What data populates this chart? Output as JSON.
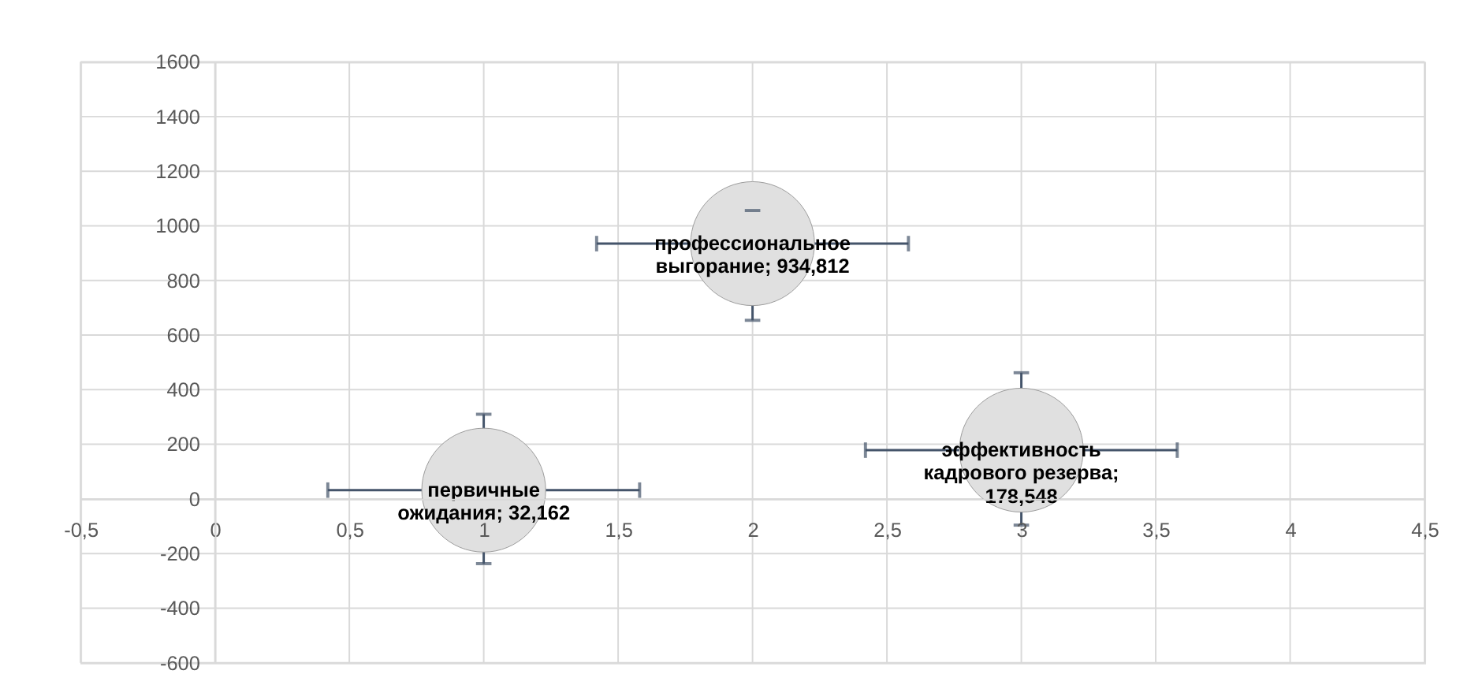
{
  "chart_data": {
    "type": "bubble",
    "x": [
      1,
      2,
      3
    ],
    "values": [
      32.162,
      934.812,
      178.548
    ],
    "sizes": [
      1,
      1,
      1
    ],
    "color": "#e0e0e0",
    "errors": [
      [
        -237,
        310
      ],
      [
        654,
        1056
      ],
      [
        -96,
        462
      ]
    ],
    "xerrors": [
      0.58,
      0.58,
      0.58
    ],
    "annotations": [
      {
        "text": "первичные\nожидания; 32,162",
        "x": 1,
        "y": 32.162
      },
      {
        "text": "профессиональное\nвыгорание; 934,812",
        "x": 2,
        "y": 934.812
      },
      {
        "text": "эффективность\nкадрового резерва;\n178,548",
        "x": 3,
        "y": 178.548
      }
    ],
    "xlim": [
      -0.5,
      4.5
    ],
    "xticks": [
      {
        "value": -0.5,
        "label": "-0,5"
      },
      0,
      {
        "value": 0.5,
        "label": "0,5"
      },
      1,
      {
        "value": 1.5,
        "label": "1,5"
      },
      2,
      {
        "value": 2.5,
        "label": "2,5"
      },
      3,
      {
        "value": 3.5,
        "label": "3,5"
      },
      4,
      {
        "value": 4.5,
        "label": "4,5"
      }
    ],
    "ylim": [
      -600,
      1600
    ],
    "yticks": [
      -600,
      -400,
      -200,
      0,
      200,
      400,
      600,
      800,
      1000,
      1200,
      1400,
      1600
    ],
    "grid": true
  }
}
